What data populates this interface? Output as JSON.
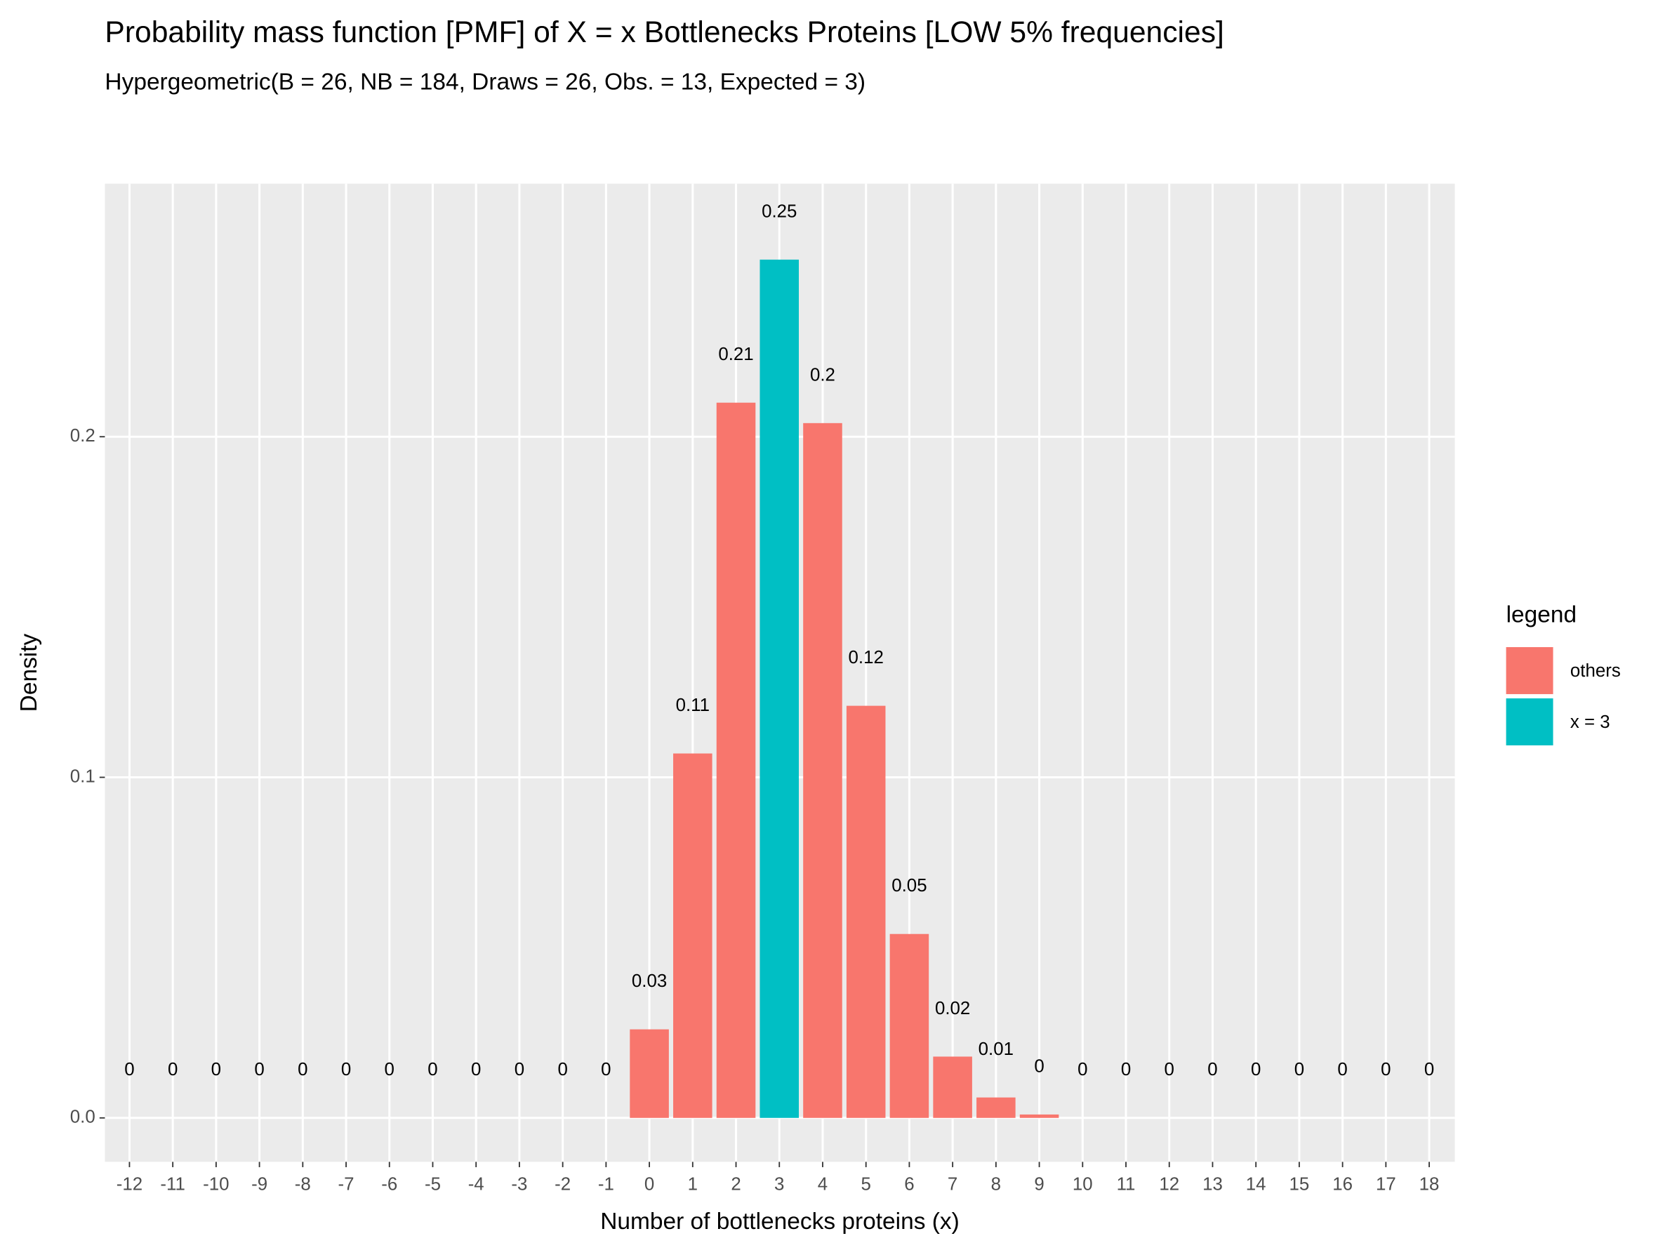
{
  "chart_data": {
    "type": "bar",
    "title": "Probability mass function [PMF] of X = x Bottlenecks Proteins [LOW 5% frequencies]",
    "subtitle": "Hypergeometric(B = 26, NB = 184, Draws = 26, Obs. = 13, Expected = 3)",
    "x_label": "Number of bottlenecks proteins (x)",
    "y_label": "Density",
    "legend_title": "legend",
    "categories": [
      "-12",
      "-11",
      "-10",
      "-9",
      "-8",
      "-7",
      "-6",
      "-5",
      "-4",
      "-3",
      "-2",
      "-1",
      "0",
      "1",
      "2",
      "3",
      "4",
      "5",
      "6",
      "7",
      "8",
      "9",
      "10",
      "11",
      "12",
      "13",
      "14",
      "15",
      "16",
      "17",
      "18"
    ],
    "series": [
      {
        "name": "others",
        "color": "#f8766d",
        "values": [
          0,
          0,
          0,
          0,
          0,
          0,
          0,
          0,
          0,
          0,
          0,
          0,
          0.026,
          0.107,
          0.21,
          null,
          0.204,
          0.121,
          0.054,
          0.018,
          0.006,
          0.001,
          0,
          0,
          0,
          0,
          0,
          0,
          0,
          0,
          0
        ],
        "value_labels": [
          "0",
          "0",
          "0",
          "0",
          "0",
          "0",
          "0",
          "0",
          "0",
          "0",
          "0",
          "0",
          "0.03",
          "0.11",
          "0.21",
          null,
          "0.2",
          "0.12",
          "0.05",
          "0.02",
          "0.01",
          "0",
          "0",
          "0",
          "0",
          "0",
          "0",
          "0",
          "0",
          "0",
          "0"
        ]
      },
      {
        "name": "x = 3",
        "color": "#00bfc4",
        "values": [
          null,
          null,
          null,
          null,
          null,
          null,
          null,
          null,
          null,
          null,
          null,
          null,
          null,
          null,
          null,
          0.252,
          null,
          null,
          null,
          null,
          null,
          null,
          null,
          null,
          null,
          null,
          null,
          null,
          null,
          null,
          null
        ],
        "value_labels": [
          null,
          null,
          null,
          null,
          null,
          null,
          null,
          null,
          null,
          null,
          null,
          null,
          null,
          null,
          null,
          "0.25",
          null,
          null,
          null,
          null,
          null,
          null,
          null,
          null,
          null,
          null,
          null,
          null,
          null,
          null,
          null
        ]
      }
    ],
    "ylim": [
      -0.0129,
      0.2743
    ],
    "yticks": [
      {
        "value": 0,
        "label": "0.0"
      },
      {
        "value": 0.1,
        "label": "0.1"
      },
      {
        "value": 0.2,
        "label": "0.2"
      }
    ],
    "grid": true
  }
}
